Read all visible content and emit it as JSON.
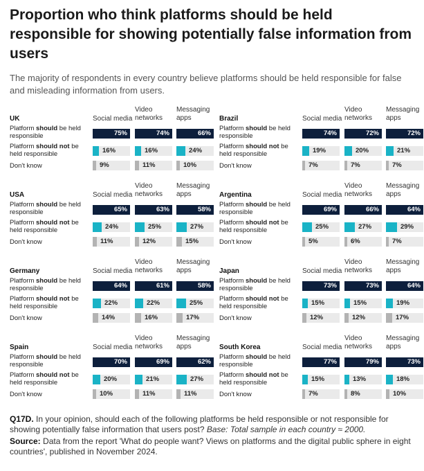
{
  "title": "Proportion who think platforms should be held responsible for showing potentially false information from users",
  "subtitle": "The majority of respondents in every country believe platforms should be held responsible for false and misleading information from users.",
  "colors": {
    "should": "#0d1f3c",
    "should_not": "#1ab3c6",
    "dont_know": "#b3b3b3",
    "track": "#eaeaea"
  },
  "chart_data": {
    "type": "bar",
    "platforms": [
      "Social media",
      "Video networks",
      "Messaging apps"
    ],
    "responses": [
      "Platform should be held responsible",
      "Platform should not be held responsible",
      "Don't know"
    ],
    "unit": "%",
    "countries": [
      {
        "name": "UK",
        "values": [
          [
            75,
            74,
            66
          ],
          [
            16,
            16,
            24
          ],
          [
            9,
            11,
            10
          ]
        ]
      },
      {
        "name": "Brazil",
        "values": [
          [
            74,
            72,
            72
          ],
          [
            19,
            20,
            21
          ],
          [
            7,
            7,
            7
          ]
        ]
      },
      {
        "name": "USA",
        "values": [
          [
            65,
            63,
            58
          ],
          [
            24,
            25,
            27
          ],
          [
            11,
            12,
            15
          ]
        ]
      },
      {
        "name": "Argentina",
        "values": [
          [
            69,
            66,
            64
          ],
          [
            25,
            27,
            29
          ],
          [
            5,
            6,
            7
          ]
        ]
      },
      {
        "name": "Germany",
        "values": [
          [
            64,
            61,
            58
          ],
          [
            22,
            22,
            25
          ],
          [
            14,
            16,
            17
          ]
        ]
      },
      {
        "name": "Japan",
        "values": [
          [
            73,
            73,
            64
          ],
          [
            15,
            15,
            19
          ],
          [
            12,
            12,
            17
          ]
        ]
      },
      {
        "name": "Spain",
        "values": [
          [
            70,
            69,
            62
          ],
          [
            20,
            21,
            27
          ],
          [
            10,
            11,
            11
          ]
        ]
      },
      {
        "name": "South Korea",
        "values": [
          [
            77,
            79,
            73
          ],
          [
            15,
            13,
            18
          ],
          [
            7,
            8,
            10
          ]
        ]
      }
    ]
  },
  "labels": {
    "col_social": "Social media",
    "col_video": "Video networks",
    "col_messaging": "Messaging apps",
    "row_should_pre": "Platform ",
    "row_should_bold": "should",
    "row_should_post": " be held responsible",
    "row_not_pre": "Platform ",
    "row_not_bold": "should not",
    "row_not_post": " be held responsible",
    "row_dk": "Don't know"
  },
  "footer": {
    "q_label": "Q17D.",
    "q_text": " In your opinion, should each of the following platforms be held responsible or not responsible for showing potentially false information that users post? ",
    "q_base": "Base: Total sample in each country ≈ 2000.",
    "src_label": "Source:",
    "src_text": " Data from the report 'What do people want? Views on platforms and the digital public sphere in eight countries', published in November 2024."
  }
}
